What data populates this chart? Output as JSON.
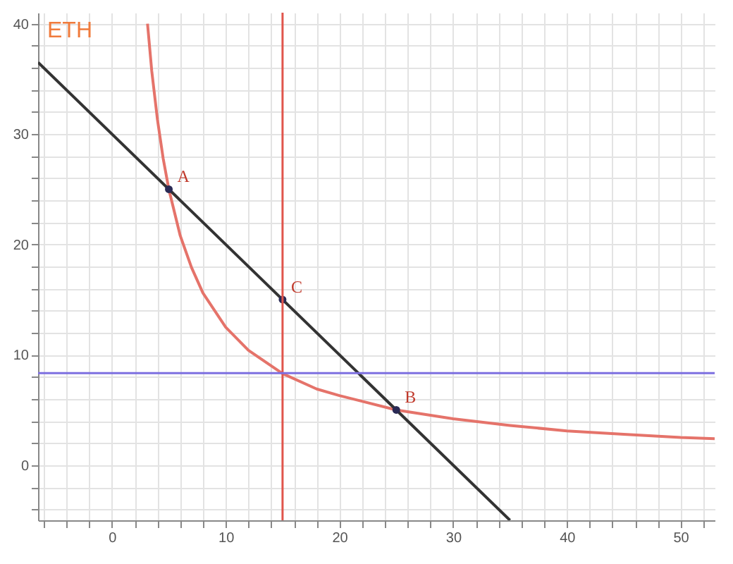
{
  "chart_data": {
    "type": "line",
    "ylabel": "ETH",
    "xlim": [
      -6.5,
      53
    ],
    "ylim": [
      -5,
      41
    ],
    "xticks": [
      {
        "value": -6,
        "label": null
      },
      {
        "value": -4,
        "label": null
      },
      {
        "value": -2,
        "label": null
      },
      0,
      {
        "value": 2,
        "label": null
      },
      {
        "value": 4,
        "label": null
      },
      {
        "value": 6,
        "label": null
      },
      {
        "value": 8,
        "label": null
      },
      10,
      {
        "value": 12,
        "label": null
      },
      {
        "value": 14,
        "label": null
      },
      {
        "value": 16,
        "label": null
      },
      {
        "value": 18,
        "label": null
      },
      20,
      {
        "value": 22,
        "label": null
      },
      {
        "value": 24,
        "label": null
      },
      {
        "value": 26,
        "label": null
      },
      {
        "value": 28,
        "label": null
      },
      30,
      {
        "value": 32,
        "label": null
      },
      {
        "value": 34,
        "label": null
      },
      {
        "value": 36,
        "label": null
      },
      {
        "value": 38,
        "label": null
      },
      40,
      {
        "value": 42,
        "label": null
      },
      {
        "value": 44,
        "label": null
      },
      {
        "value": 46,
        "label": null
      },
      {
        "value": 48,
        "label": null
      },
      50,
      {
        "value": 52,
        "label": null
      }
    ],
    "yticks": [
      {
        "value": -4,
        "label": null
      },
      {
        "value": -2,
        "label": null
      },
      0,
      {
        "value": 2,
        "label": null
      },
      {
        "value": 4,
        "label": null
      },
      {
        "value": 6,
        "label": null
      },
      {
        "value": 8,
        "label": null
      },
      10,
      {
        "value": 12,
        "label": null
      },
      {
        "value": 14,
        "label": null
      },
      {
        "value": 16,
        "label": null
      },
      {
        "value": 18,
        "label": null
      },
      20,
      {
        "value": 22,
        "label": null
      },
      {
        "value": 24,
        "label": null
      },
      {
        "value": 26,
        "label": null
      },
      {
        "value": 28,
        "label": null
      },
      30,
      {
        "value": 32,
        "label": null
      },
      {
        "value": 34,
        "label": null
      },
      {
        "value": 36,
        "label": null
      },
      {
        "value": 38,
        "label": null
      },
      40
    ],
    "grid": true,
    "series": [
      {
        "color": "#e5736a",
        "x": [
          3.125,
          3.5,
          4,
          4.5,
          5,
          6,
          7,
          8,
          10,
          12,
          15,
          18,
          20,
          25,
          30,
          35,
          40,
          45,
          50,
          53
        ],
        "values": [
          40,
          35.7,
          31.3,
          27.8,
          25,
          20.8,
          17.9,
          15.6,
          12.5,
          10.4,
          8.3,
          6.9,
          6.3,
          5,
          4.2,
          3.6,
          3.1,
          2.8,
          2.5,
          2.4
        ]
      },
      {
        "color": "#333333",
        "x": [
          -6.5,
          35
        ],
        "values": [
          36.5,
          -5
        ]
      },
      {
        "type": "scatter",
        "color": "#2a2a55",
        "marker": "circle",
        "x": [
          5,
          15,
          25
        ],
        "values": [
          25,
          15,
          5
        ]
      }
    ],
    "ref_lines": [
      {
        "axis": "x",
        "value": 15,
        "color": "#e0554c"
      },
      {
        "axis": "y",
        "value": 8.33,
        "color": "#7d6fe0"
      }
    ],
    "annotations": [
      {
        "text": "A",
        "x": 5,
        "y": 25
      },
      {
        "text": "C",
        "x": 15,
        "y": 15
      },
      {
        "text": "B",
        "x": 25,
        "y": 5
      }
    ]
  }
}
